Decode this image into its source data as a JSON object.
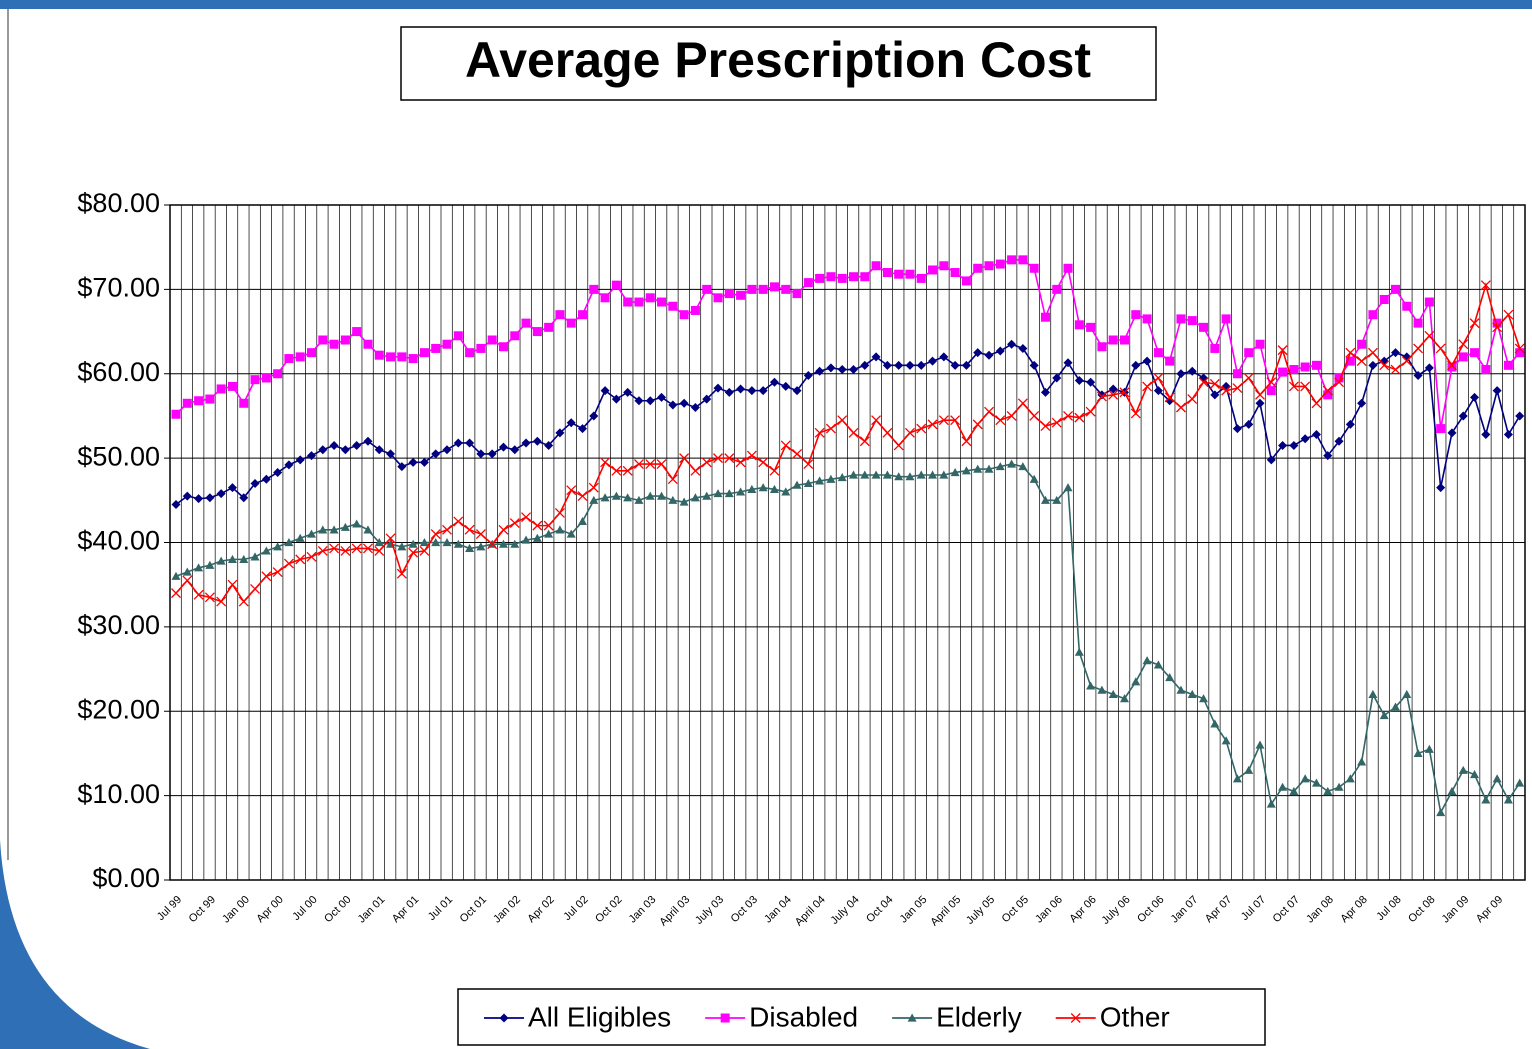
{
  "chart_data": {
    "type": "line",
    "title": "Average Prescription Cost",
    "categories": [
      "Jul 99",
      null,
      null,
      "Oct 99",
      null,
      null,
      "Jan 00",
      null,
      null,
      "Apr 00",
      null,
      null,
      "Jul 00",
      null,
      null,
      "Oct 00",
      null,
      null,
      "Jan 01",
      null,
      null,
      "Apr 01",
      null,
      null,
      "Jul 01",
      null,
      null,
      "Oct 01",
      null,
      null,
      "Jan 02",
      null,
      null,
      "Apr 02",
      null,
      null,
      "Jul 02",
      null,
      null,
      "Oct 02",
      null,
      null,
      "Jan 03",
      null,
      null,
      "April 03",
      null,
      null,
      "July 03",
      null,
      null,
      "Oct 03",
      null,
      null,
      "Jan 04",
      null,
      null,
      "April 04",
      null,
      null,
      "July 04",
      null,
      null,
      "Oct 04",
      null,
      null,
      "Jan 05",
      null,
      null,
      "April 05",
      null,
      null,
      "July 05",
      null,
      null,
      "Oct 05",
      null,
      null,
      "Jan 06",
      null,
      null,
      "Apr 06",
      null,
      null,
      "July 06",
      null,
      null,
      "Oct 06",
      null,
      null,
      "Jan 07",
      null,
      null,
      "Apr 07",
      null,
      null,
      "Jul 07",
      null,
      null,
      "Oct 07",
      null,
      null,
      "Jan 08",
      null,
      null,
      "Apr 08",
      null,
      null,
      "Jul 08",
      null,
      null,
      "Oct 08",
      null,
      null,
      "Jan 09",
      null,
      null,
      "Apr 09",
      null,
      null
    ],
    "series": [
      {
        "name": "All Eligibles",
        "color": "#000080",
        "marker": "diamond",
        "values": [
          44.5,
          45.5,
          45.2,
          45.3,
          45.8,
          46.5,
          45.3,
          47,
          47.5,
          48.3,
          49.2,
          49.8,
          50.3,
          51,
          51.5,
          51,
          51.5,
          52,
          51,
          50.5,
          49,
          49.5,
          49.5,
          50.5,
          51,
          51.8,
          51.8,
          50.5,
          50.5,
          51.3,
          51,
          51.8,
          52,
          51.5,
          53,
          54.2,
          53.5,
          55,
          58,
          57,
          57.8,
          56.8,
          56.8,
          57.2,
          56.3,
          56.5,
          56,
          57,
          58.3,
          57.8,
          58.2,
          58,
          58,
          59,
          58.5,
          58,
          59.8,
          60.3,
          60.7,
          60.5,
          60.5,
          61,
          62,
          61,
          61,
          61,
          61,
          61.5,
          62,
          61,
          61,
          62.5,
          62.2,
          62.7,
          63.5,
          63,
          61,
          57.8,
          59.5,
          61.3,
          59.2,
          59,
          57.5,
          58.2,
          57.8,
          61,
          61.5,
          58,
          56.8,
          60,
          60.3,
          59.5,
          57.5,
          58.5,
          53.5,
          54,
          56.5,
          49.8,
          51.5,
          51.5,
          52.3,
          52.8,
          50.3,
          52,
          54,
          56.5,
          61,
          61.5,
          62.5,
          62,
          59.8,
          60.7,
          46.5,
          53,
          55,
          57.2,
          52.8,
          58,
          52.8,
          55
        ]
      },
      {
        "name": "Disabled",
        "color": "#ff00ff",
        "marker": "square",
        "values": [
          55.2,
          56.5,
          56.8,
          57,
          58.2,
          58.5,
          56.5,
          59.3,
          59.5,
          60,
          61.8,
          62,
          62.5,
          64,
          63.5,
          64,
          65,
          63.5,
          62.2,
          62,
          62,
          61.8,
          62.5,
          63,
          63.5,
          64.5,
          62.5,
          63,
          64,
          63.2,
          64.5,
          66,
          65,
          65.5,
          67,
          66,
          67,
          70,
          69,
          70.5,
          68.5,
          68.5,
          69,
          68.5,
          68,
          67,
          67.5,
          70,
          69,
          69.5,
          69.3,
          70,
          70,
          70.3,
          70,
          69.5,
          70.8,
          71.3,
          71.5,
          71.3,
          71.5,
          71.5,
          72.8,
          72,
          71.8,
          71.8,
          71.3,
          72.3,
          72.8,
          72,
          71,
          72.5,
          72.8,
          73,
          73.5,
          73.5,
          72.5,
          66.7,
          70,
          72.5,
          65.8,
          65.5,
          63.2,
          64,
          64,
          67,
          66.5,
          62.5,
          61.5,
          66.5,
          66.3,
          65.5,
          63,
          66.5,
          60,
          62.5,
          63.5,
          58,
          60.2,
          60.5,
          60.8,
          61,
          57.5,
          59.5,
          61.5,
          63.5,
          67,
          68.8,
          70,
          68,
          66,
          68.5,
          53.5,
          60.8,
          62,
          62.5,
          60.5,
          66,
          61,
          62.5
        ]
      },
      {
        "name": "Elderly",
        "color": "#336666",
        "marker": "triangle",
        "values": [
          36,
          36.5,
          37,
          37.3,
          37.8,
          38,
          38,
          38.3,
          39,
          39.5,
          40,
          40.5,
          41,
          41.5,
          41.5,
          41.8,
          42.2,
          41.5,
          40,
          39.8,
          39.5,
          39.8,
          40,
          40,
          40,
          39.8,
          39.3,
          39.5,
          39.8,
          39.8,
          39.8,
          40.3,
          40.5,
          41,
          41.5,
          41,
          42.5,
          45,
          45.3,
          45.5,
          45.3,
          45,
          45.5,
          45.5,
          45,
          44.8,
          45.3,
          45.5,
          45.8,
          45.8,
          46,
          46.3,
          46.5,
          46.3,
          46,
          46.8,
          47,
          47.3,
          47.5,
          47.7,
          48,
          48,
          48,
          48,
          47.8,
          47.8,
          48,
          48,
          48,
          48.3,
          48.5,
          48.7,
          48.7,
          49,
          49.3,
          49,
          47.5,
          45,
          45,
          46.5,
          27,
          23,
          22.5,
          22,
          21.5,
          23.5,
          26,
          25.5,
          24,
          22.5,
          22,
          21.5,
          18.5,
          16.5,
          12,
          13,
          16,
          9,
          11,
          10.5,
          12,
          11.5,
          10.5,
          11,
          12,
          14,
          22,
          19.5,
          20.5,
          22,
          15,
          15.5,
          8,
          10.5,
          13,
          12.5,
          9.5,
          12,
          9.5,
          11.5
        ]
      },
      {
        "name": "Other",
        "color": "#ff0000",
        "marker": "x",
        "values": [
          34,
          35.5,
          33.8,
          33.5,
          33,
          35,
          33,
          34.5,
          36,
          36.5,
          37.5,
          38,
          38.3,
          39,
          39.3,
          39,
          39.3,
          39.3,
          39,
          40.5,
          36.3,
          38.8,
          39,
          41,
          41.5,
          42.5,
          41.5,
          41,
          39.8,
          41.5,
          42.3,
          43,
          42,
          42,
          43.5,
          46.2,
          45.5,
          46.5,
          49.5,
          48.5,
          48.5,
          49.3,
          49.3,
          49.3,
          47.5,
          50,
          48.5,
          49.5,
          50,
          50,
          49.5,
          50.3,
          49.5,
          48.5,
          51.5,
          50.5,
          49.3,
          53,
          53.5,
          54.5,
          53,
          52,
          54.5,
          53,
          51.5,
          53,
          53.5,
          54,
          54.5,
          54.5,
          52,
          54,
          55.5,
          54.5,
          55,
          56.5,
          55,
          53.8,
          54.2,
          55,
          54.8,
          55.5,
          57.3,
          57.5,
          57.8,
          55.3,
          58.5,
          59.5,
          57.2,
          56,
          57,
          59,
          58.8,
          58,
          58.3,
          59.5,
          57.5,
          59,
          62.8,
          58.5,
          58.5,
          56.5,
          58,
          59,
          62.5,
          61.5,
          62.5,
          61,
          60.5,
          61.5,
          63,
          64.5,
          63,
          61,
          63.5,
          66,
          70.5,
          65.5,
          67,
          63
        ]
      }
    ],
    "ylim": [
      0,
      80
    ],
    "yticks": [
      {
        "value": 0,
        "label": "$0.00"
      },
      {
        "value": 10,
        "label": "$10.00"
      },
      {
        "value": 20,
        "label": "$20.00"
      },
      {
        "value": 30,
        "label": "$30.00"
      },
      {
        "value": 40,
        "label": "$40.00"
      },
      {
        "value": 50,
        "label": "$50.00"
      },
      {
        "value": 60,
        "label": "$60.00"
      },
      {
        "value": 70,
        "label": "$70.00"
      },
      {
        "value": 80,
        "label": "$80.00"
      }
    ],
    "grid": true,
    "legend": "bottom"
  }
}
